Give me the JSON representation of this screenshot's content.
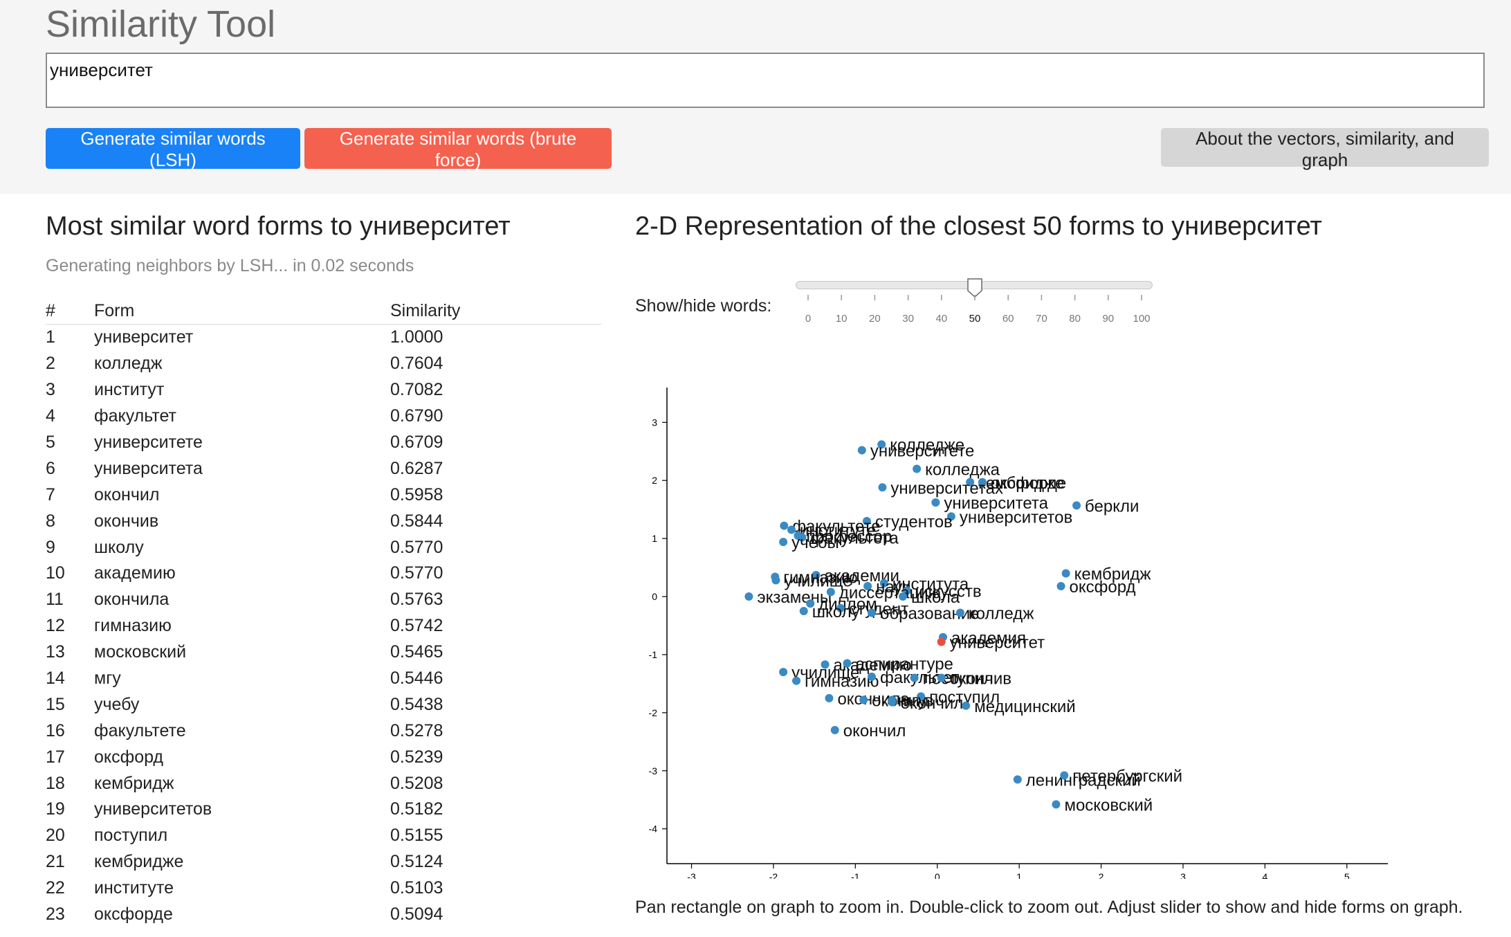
{
  "header": {
    "title": "Similarity Tool",
    "query_value": "университет",
    "lsh_button": "Generate similar words (LSH)",
    "brute_button": "Generate similar words (brute force)",
    "about_button": "About the vectors, similarity, and graph"
  },
  "left": {
    "heading": "Most similar word forms to университет",
    "status": "Generating neighbors by LSH... in 0.02 seconds",
    "columns": {
      "num": "#",
      "form": "Form",
      "similarity": "Similarity"
    },
    "rows": [
      {
        "num": "1",
        "form": "университет",
        "sim": "1.0000"
      },
      {
        "num": "2",
        "form": "колледж",
        "sim": "0.7604"
      },
      {
        "num": "3",
        "form": "институт",
        "sim": "0.7082"
      },
      {
        "num": "4",
        "form": "факультет",
        "sim": "0.6790"
      },
      {
        "num": "5",
        "form": "университете",
        "sim": "0.6709"
      },
      {
        "num": "6",
        "form": "университета",
        "sim": "0.6287"
      },
      {
        "num": "7",
        "form": "окончил",
        "sim": "0.5958"
      },
      {
        "num": "8",
        "form": "окончив",
        "sim": "0.5844"
      },
      {
        "num": "9",
        "form": "школу",
        "sim": "0.5770"
      },
      {
        "num": "10",
        "form": "академию",
        "sim": "0.5770"
      },
      {
        "num": "11",
        "form": "окончила",
        "sim": "0.5763"
      },
      {
        "num": "12",
        "form": "гимназию",
        "sim": "0.5742"
      },
      {
        "num": "13",
        "form": "московский",
        "sim": "0.5465"
      },
      {
        "num": "14",
        "form": "мгу",
        "sim": "0.5446"
      },
      {
        "num": "15",
        "form": "учебу",
        "sim": "0.5438"
      },
      {
        "num": "16",
        "form": "факультете",
        "sim": "0.5278"
      },
      {
        "num": "17",
        "form": "оксфорд",
        "sim": "0.5239"
      },
      {
        "num": "18",
        "form": "кембридж",
        "sim": "0.5208"
      },
      {
        "num": "19",
        "form": "университетов",
        "sim": "0.5182"
      },
      {
        "num": "20",
        "form": "поступил",
        "sim": "0.5155"
      },
      {
        "num": "21",
        "form": "кембридже",
        "sim": "0.5124"
      },
      {
        "num": "22",
        "form": "институте",
        "sim": "0.5103"
      },
      {
        "num": "23",
        "form": "оксфорде",
        "sim": "0.5094"
      }
    ]
  },
  "right": {
    "heading": "2-D Representation of the closest 50 forms to университет",
    "slider_label": "Show/hide words:",
    "slider_value": 50,
    "slider_ticks": [
      "0",
      "10",
      "20",
      "30",
      "40",
      "50",
      "60",
      "70",
      "80",
      "90",
      "100"
    ],
    "caption": "Pan rectangle on graph to zoom in. Double-click to zoom out. Adjust slider to show and hide forms on graph."
  },
  "chart_data": {
    "type": "scatter",
    "xlim": [
      -3.3,
      5.5
    ],
    "ylim": [
      -4.6,
      3.6
    ],
    "x_ticks": [
      "-3",
      "-2",
      "-1",
      "0",
      "1",
      "2",
      "3",
      "4",
      "5"
    ],
    "y_ticks": [
      "3",
      "2",
      "1",
      "0",
      "-1",
      "-2",
      "-3",
      "-4"
    ],
    "colors": {
      "point": "#3a8ac4",
      "query_point": "#e8503e"
    },
    "points": [
      {
        "x": -0.68,
        "y": 2.62,
        "label": "колледже"
      },
      {
        "x": -0.92,
        "y": 2.52,
        "label": "университете"
      },
      {
        "x": -0.25,
        "y": 2.2,
        "label": "колледжа"
      },
      {
        "x": 0.4,
        "y": 1.97,
        "label": "кембридже"
      },
      {
        "x": 0.55,
        "y": 1.97,
        "label": "оксфорде"
      },
      {
        "x": -0.67,
        "y": 1.88,
        "label": "университетах"
      },
      {
        "x": -0.02,
        "y": 1.62,
        "label": "университета"
      },
      {
        "x": 1.7,
        "y": 1.57,
        "label": "беркли"
      },
      {
        "x": 0.17,
        "y": 1.38,
        "label": "университетов"
      },
      {
        "x": -0.86,
        "y": 1.3,
        "label": "студентов"
      },
      {
        "x": -1.87,
        "y": 1.22,
        "label": "факультете"
      },
      {
        "x": -1.78,
        "y": 1.15,
        "label": "институте"
      },
      {
        "x": -1.7,
        "y": 1.05,
        "label": "профессор"
      },
      {
        "x": -1.65,
        "y": 1.02,
        "label": "факультета"
      },
      {
        "x": -1.88,
        "y": 0.94,
        "label": "учебы"
      },
      {
        "x": 1.57,
        "y": 0.4,
        "label": "кембридж"
      },
      {
        "x": 1.51,
        "y": 0.18,
        "label": "оксфорд"
      },
      {
        "x": -1.48,
        "y": 0.37,
        "label": "академии"
      },
      {
        "x": -1.98,
        "y": 0.34,
        "label": "гимназию"
      },
      {
        "x": -1.97,
        "y": 0.28,
        "label": "училище"
      },
      {
        "x": -0.65,
        "y": 0.23,
        "label": "института"
      },
      {
        "x": -0.85,
        "y": 0.18,
        "label": "наук"
      },
      {
        "x": -0.37,
        "y": 0.1,
        "label": "искусств"
      },
      {
        "x": -2.3,
        "y": 0.0,
        "label": "экзамены"
      },
      {
        "x": -1.3,
        "y": 0.08,
        "label": "диссертацию"
      },
      {
        "x": -0.42,
        "y": 0.0,
        "label": "школа"
      },
      {
        "x": -1.55,
        "y": -0.12,
        "label": "диплом"
      },
      {
        "x": -1.18,
        "y": -0.2,
        "label": "студент"
      },
      {
        "x": -1.63,
        "y": -0.25,
        "label": "школу"
      },
      {
        "x": -0.8,
        "y": -0.28,
        "label": "образование"
      },
      {
        "x": 0.28,
        "y": -0.28,
        "label": "колледж"
      },
      {
        "x": 0.07,
        "y": -0.7,
        "label": "академия"
      },
      {
        "x": 0.05,
        "y": -0.78,
        "label": "университет",
        "query": true
      },
      {
        "x": -1.37,
        "y": -1.17,
        "label": "академию"
      },
      {
        "x": -1.1,
        "y": -1.15,
        "label": "аспирантуре"
      },
      {
        "x": -1.88,
        "y": -1.3,
        "label": "училище"
      },
      {
        "x": -1.72,
        "y": -1.45,
        "label": "гимназию"
      },
      {
        "x": -0.8,
        "y": -1.38,
        "label": "факультет"
      },
      {
        "x": -0.28,
        "y": -1.4,
        "label": "поступил"
      },
      {
        "x": 0.05,
        "y": -1.4,
        "label": "окончив"
      },
      {
        "x": -1.32,
        "y": -1.75,
        "label": "окончила"
      },
      {
        "x": -0.9,
        "y": -1.78,
        "label": "окончив"
      },
      {
        "x": -0.55,
        "y": -1.82,
        "label": "окончил"
      },
      {
        "x": -0.2,
        "y": -1.72,
        "label": "поступил"
      },
      {
        "x": -0.55,
        "y": -1.78,
        "label": "мгу"
      },
      {
        "x": 0.35,
        "y": -1.88,
        "label": "медицинский"
      },
      {
        "x": -1.25,
        "y": -2.3,
        "label": "окончил"
      },
      {
        "x": 0.98,
        "y": -3.15,
        "label": "ленинградский"
      },
      {
        "x": 1.55,
        "y": -3.08,
        "label": "петербургский"
      },
      {
        "x": 1.45,
        "y": -3.58,
        "label": "московский"
      }
    ]
  }
}
